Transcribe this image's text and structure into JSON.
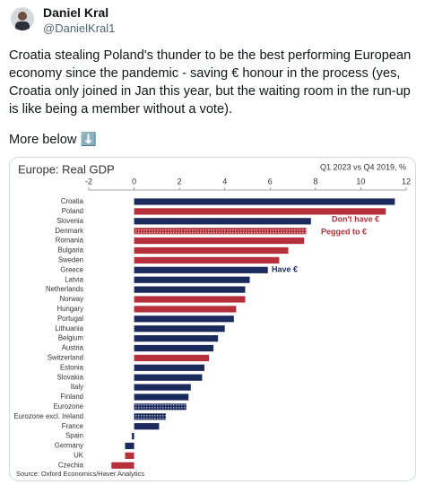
{
  "tweet": {
    "name": "Daniel Kral",
    "handle": "@DanielKral1",
    "text": "Croatia stealing Poland's thunder to be the best performing European economy since the pandemic - saving € honour in the process (yes, Croatia only joined in Jan this year, but the waiting room in the run-up is like being a member without a vote).",
    "more": "More below ⬇️"
  },
  "chart_data": {
    "type": "hbar",
    "title": "Europe: Real GDP",
    "subtitle": "Q1 2023 vs Q4 2019, %",
    "source": "Source: Oxford Economics/Haver Analytics",
    "categories": [
      "Croatia",
      "Poland",
      "Slovenia",
      "Denmark",
      "Romania",
      "Bulgaria",
      "Sweden",
      "Greece",
      "Latvia",
      "Netherlands",
      "Norway",
      "Hungary",
      "Portugal",
      "Lithuania",
      "Belgium",
      "Austria",
      "Switzerland",
      "Estonia",
      "Slovakia",
      "Italy",
      "Finland",
      "Eurozone",
      "Eurozone excl. Ireland",
      "France",
      "Spain",
      "Germany",
      "UK",
      "Czechia"
    ],
    "values": [
      11.5,
      11.1,
      7.8,
      7.6,
      7.5,
      6.8,
      6.4,
      5.9,
      5.1,
      4.9,
      4.9,
      4.5,
      4.4,
      4.0,
      3.7,
      3.5,
      3.3,
      3.1,
      3.0,
      2.5,
      2.4,
      2.3,
      1.4,
      1.1,
      -0.1,
      -0.4,
      -0.4,
      -1.0
    ],
    "colors": [
      "#1b2a5c",
      "#b5303a",
      "#1b2a5c",
      "#b5303a",
      "#b5303a",
      "#b5303a",
      "#b5303a",
      "#1b2a5c",
      "#1b2a5c",
      "#1b2a5c",
      "#b5303a",
      "#b5303a",
      "#1b2a5c",
      "#1b2a5c",
      "#1b2a5c",
      "#1b2a5c",
      "#b5303a",
      "#1b2a5c",
      "#1b2a5c",
      "#1b2a5c",
      "#1b2a5c",
      "#1b2a5c",
      "#1b2a5c",
      "#1b2a5c",
      "#1b2a5c",
      "#1b2a5c",
      "#b5303a",
      "#b5303a"
    ],
    "hatched": [
      false,
      false,
      false,
      true,
      false,
      false,
      false,
      false,
      false,
      false,
      false,
      false,
      false,
      false,
      false,
      false,
      false,
      false,
      false,
      false,
      false,
      true,
      true,
      false,
      false,
      false,
      false,
      false
    ],
    "xlim": [
      -2,
      12
    ],
    "xticks": [
      -2,
      0,
      2,
      4,
      6,
      8,
      10,
      12
    ],
    "grid": false,
    "annotations": [
      {
        "text": "Don't have €",
        "color": "#b5303a"
      },
      {
        "text": "Pegged to €",
        "color": "#b5303a"
      },
      {
        "text": "Have €",
        "color": "#1b2a5c"
      }
    ]
  }
}
